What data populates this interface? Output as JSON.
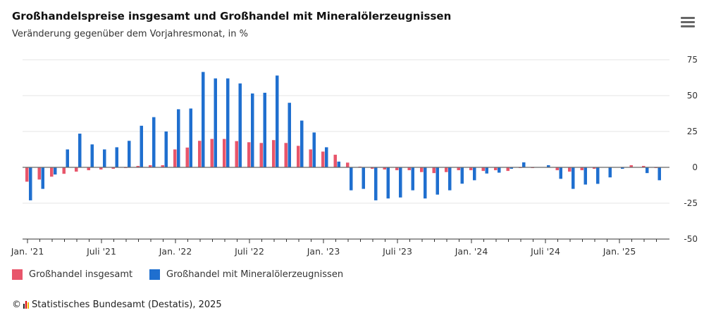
{
  "title": "Großhandelspreise insgesamt und Großhandel mit Mineralölerzeugnissen",
  "subtitle": "Veränderung gegenüber dem Vorjahresmonat, in %",
  "menu_icon": "hamburger-menu-icon",
  "source": "Statistisches Bundesamt (Destatis), 2025",
  "copyright": "©",
  "chart_data": {
    "type": "bar",
    "title": "Großhandelspreise insgesamt und Großhandel mit Mineralölerzeugnissen",
    "subtitle": "Veränderung gegenüber dem Vorjahresmonat, in %",
    "x_start": "2021-01",
    "x_end": "2025-04",
    "frequency": "monthly",
    "tick_labels": [
      "Jan. '21",
      "Juli '21",
      "Jan. '22",
      "Juli '22",
      "Jan. '23",
      "Juli '23",
      "Jan. '24",
      "Juli '24",
      "Jan. '25"
    ],
    "y_ticks": [
      75,
      50,
      25,
      0,
      -25,
      -50
    ],
    "ylim": [
      -50,
      75
    ],
    "grid": true,
    "legend_position": "bottom-left",
    "series": [
      {
        "name": "Großhandel insgesamt",
        "color": "#e8566b",
        "values": [
          -10,
          -8.5,
          -6.5,
          -4.5,
          -3,
          -2,
          -1.5,
          -1,
          -0.5,
          1,
          1.5,
          1.5,
          12.5,
          13.8,
          18.5,
          19.8,
          19.8,
          18.3,
          17.5,
          17,
          19,
          17,
          15,
          12.5,
          11,
          8.8,
          3.3,
          0.5,
          -1,
          -1.5,
          -2,
          -2,
          -3.3,
          -4,
          -3.3,
          -2,
          -2,
          -2.5,
          -2,
          -2.5,
          -0.5,
          -0.5,
          0,
          -2,
          -3,
          -2,
          -1,
          0,
          0,
          1.5,
          1,
          -0.5
        ]
      },
      {
        "name": "Großhandel mit Mineralölerzeugnissen",
        "color": "#1f6fcf",
        "values": [
          -23,
          -15,
          -5,
          12.5,
          23.5,
          16,
          12.5,
          14,
          18.5,
          29,
          35,
          25,
          40.5,
          41,
          66.5,
          62,
          62,
          58.5,
          51.5,
          52,
          64,
          45,
          32.6,
          24.3,
          14,
          4,
          -16,
          -15,
          -23,
          -21.7,
          -21,
          -16,
          -21.7,
          -19,
          -16,
          -11.4,
          -9,
          -4.3,
          -3.7,
          -1,
          3.5,
          0,
          1.5,
          -8,
          -15,
          -12,
          -11.5,
          -7,
          -1,
          0,
          -4,
          -9
        ]
      }
    ]
  }
}
